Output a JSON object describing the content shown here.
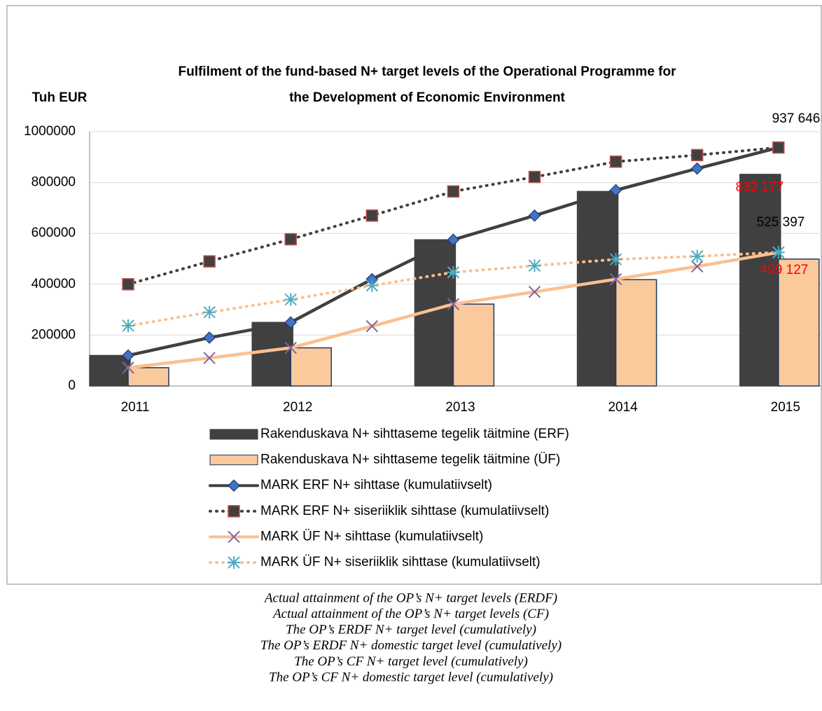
{
  "chart_data": {
    "type": "bar",
    "title": [
      "Fulfilment of the fund-based N+ target levels of the Operational Programme for",
      "the Development of Economic Environment"
    ],
    "y_label": "Tuh EUR",
    "categories": [
      "2011",
      null,
      "2012",
      null,
      "2013",
      null,
      "2014",
      null,
      "2015"
    ],
    "ylim": [
      0,
      1000000
    ],
    "yticks": [
      0,
      200000,
      400000,
      600000,
      800000,
      1000000
    ],
    "grid": true,
    "series": [
      {
        "name": "Rakenduskava N+ sihttaseme tegelik täitmine (ERF)",
        "type": "bar",
        "side": "left",
        "color": "#404040",
        "stroke": "#404040",
        "values": [
          120000,
          null,
          250000,
          null,
          575000,
          null,
          765000,
          null,
          832177
        ],
        "value_labels": [
          null,
          null,
          null,
          null,
          null,
          null,
          null,
          null,
          "832 177"
        ],
        "label_color": "#ff0000"
      },
      {
        "name": "Rakenduskava N+ sihttaseme tegelik täitmine (ÜF)",
        "type": "bar",
        "side": "right",
        "color": "#fac99c",
        "stroke": "#1f3864",
        "values": [
          72000,
          null,
          150000,
          null,
          322000,
          null,
          418000,
          null,
          499127
        ],
        "value_labels": [
          null,
          null,
          null,
          null,
          null,
          null,
          null,
          null,
          "499 127"
        ],
        "label_color": "#ff0000"
      },
      {
        "name": "MARK ERF N+ sihttase (kumulatiivselt)",
        "type": "line",
        "dash": "solid",
        "color": "#404040",
        "marker": "diamond",
        "marker_color": "#4472c4",
        "values": [
          120000,
          190000,
          250000,
          420000,
          575000,
          670000,
          770000,
          855000,
          937646
        ],
        "value_labels": [
          null,
          null,
          null,
          null,
          null,
          null,
          null,
          null,
          "937 646"
        ],
        "label_color": "#000000"
      },
      {
        "name": "MARK ERF N+ siseriiklik sihttase (kumulatiivselt)",
        "type": "line",
        "dash": "dotted",
        "color": "#404040",
        "marker": "square",
        "marker_color": "#404040",
        "values": [
          400000,
          490000,
          577000,
          670000,
          765000,
          822000,
          882000,
          908000,
          937646
        ]
      },
      {
        "name": "MARK ÜF N+ sihttase (kumulatiivselt)",
        "type": "line",
        "dash": "solid",
        "color": "#fac090",
        "marker": "x",
        "marker_color": "#8064a2",
        "values": [
          72000,
          110000,
          150000,
          235000,
          322000,
          370000,
          420000,
          470000,
          525397
        ],
        "value_labels": [
          null,
          null,
          null,
          null,
          null,
          null,
          null,
          null,
          "525 397"
        ],
        "label_color": "#000000"
      },
      {
        "name": "MARK ÜF N+ siseriiklik sihttase (kumulatiivselt)",
        "type": "line",
        "dash": "dotted",
        "color": "#fac090",
        "marker": "asterisk",
        "marker_color": "#4bacc6",
        "values": [
          237000,
          290000,
          340000,
          395000,
          447000,
          473000,
          498000,
          510000,
          525397
        ]
      }
    ]
  },
  "caption": [
    "Actual attainment of the OP’s N+ target levels (ERDF)",
    "Actual attainment of the OP’s N+ target levels (CF)",
    "The OP’s ERDF N+ target level (cumulatively)",
    "The OP’s ERDF N+ domestic target level (cumulatively)",
    "The OP’s CF N+ target level (cumulatively)",
    "The OP’s CF N+ domestic target level (cumulatively)"
  ]
}
